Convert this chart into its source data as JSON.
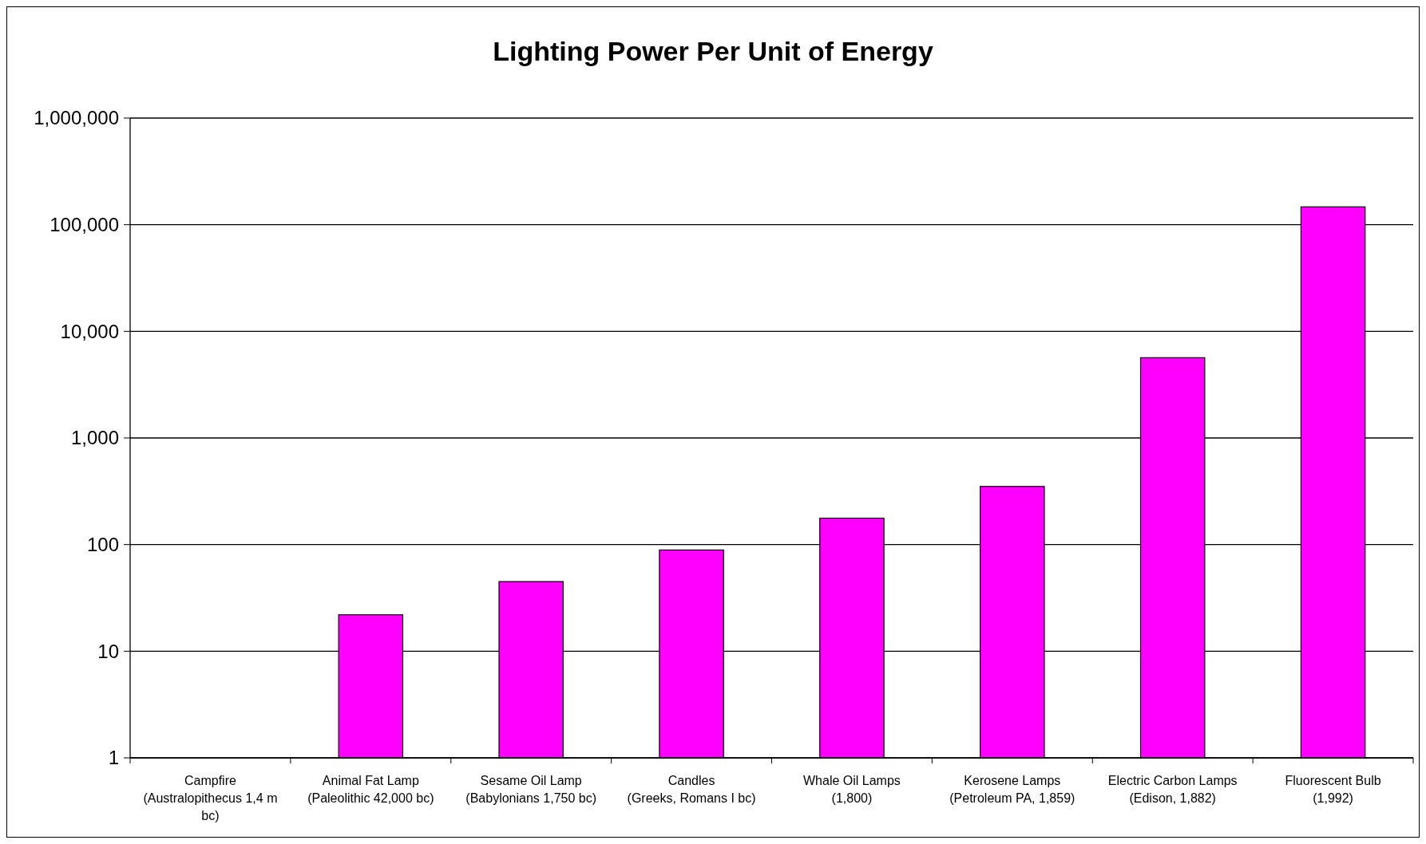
{
  "chart_data": {
    "type": "bar",
    "title": "Lighting Power Per Unit of Energy",
    "categories": [
      "Campfire (Australopithecus 1,4 m bc)",
      "Animal Fat Lamp (Paleolithic 42,000 bc)",
      "Sesame Oil Lamp (Babylonians 1,750 bc)",
      "Candles (Greeks, Romans I bc)",
      "Whale Oil Lamps (1,800)",
      "Kerosene Lamps (Petroleum PA, 1,859)",
      "Electric Carbon Lamps (Edison, 1,882)",
      "Fluorescent Bulb (1,992)"
    ],
    "values": [
      1,
      22,
      45,
      89,
      177,
      351,
      5660,
      147000
    ],
    "color": "#ff00ff",
    "log": true,
    "ylim": [
      1,
      1000000
    ],
    "yticks": [
      1,
      10,
      100,
      {
        "value": 1000,
        "label": "1,000"
      },
      {
        "value": 10000,
        "label": "10,000"
      },
      {
        "value": 100000,
        "label": "100,000"
      },
      {
        "value": 1000000,
        "label": "1,000,000"
      }
    ],
    "grid": "y"
  }
}
